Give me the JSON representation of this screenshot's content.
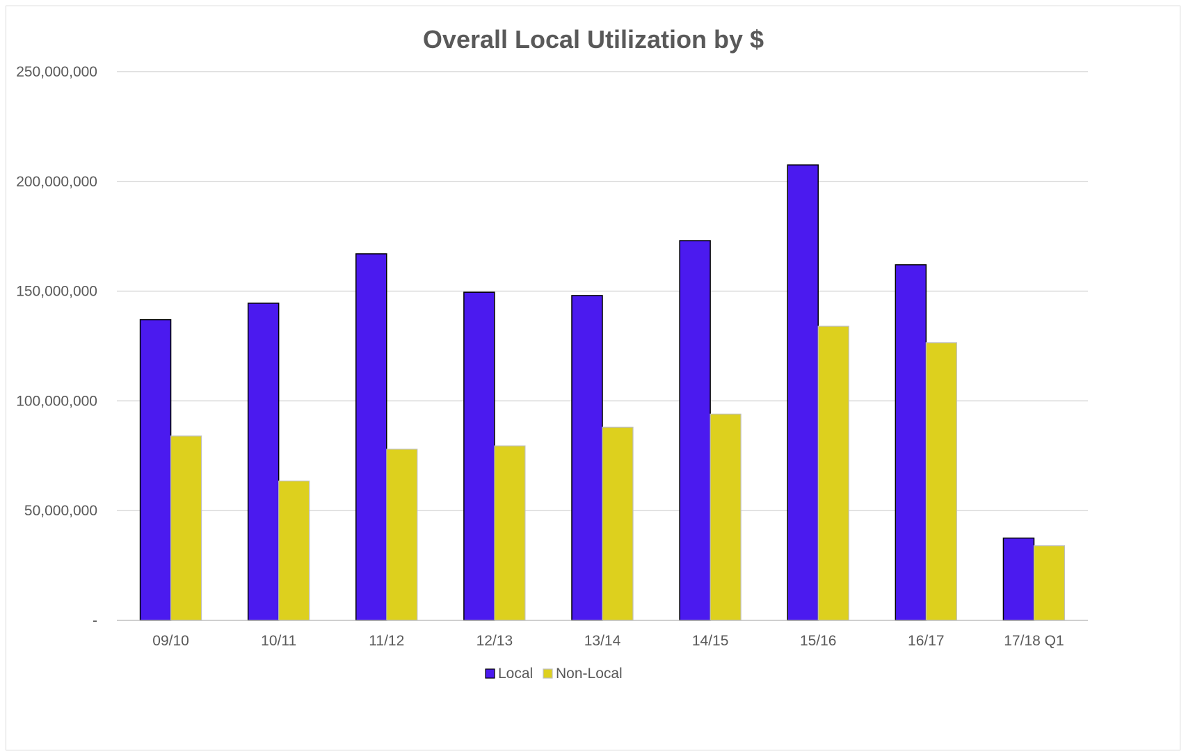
{
  "chart_data": {
    "type": "bar",
    "title": "Overall Local Utilization by $",
    "xlabel": "",
    "ylabel": "",
    "categories": [
      "09/10",
      "10/11",
      "11/12",
      "12/13",
      "13/14",
      "14/15",
      "15/16",
      "16/17",
      "17/18 Q1"
    ],
    "series": [
      {
        "name": "Local",
        "color": "#4b1aef",
        "values": [
          137000000,
          144500000,
          167000000,
          149500000,
          148000000,
          173000000,
          207500000,
          162000000,
          37500000
        ]
      },
      {
        "name": "Non-Local",
        "color": "#ddd01e",
        "values": [
          84000000,
          63500000,
          78000000,
          79500000,
          88000000,
          94000000,
          134000000,
          126500000,
          34000000
        ]
      }
    ],
    "ylim": [
      0,
      250000000
    ],
    "yticks": [
      0,
      50000000,
      100000000,
      150000000,
      200000000,
      250000000
    ],
    "ytick_labels": [
      "-",
      "50,000,000",
      "100,000,000",
      "150,000,000",
      "200,000,000",
      "250,000,000"
    ],
    "grid": true,
    "legend": "bottom-center"
  }
}
